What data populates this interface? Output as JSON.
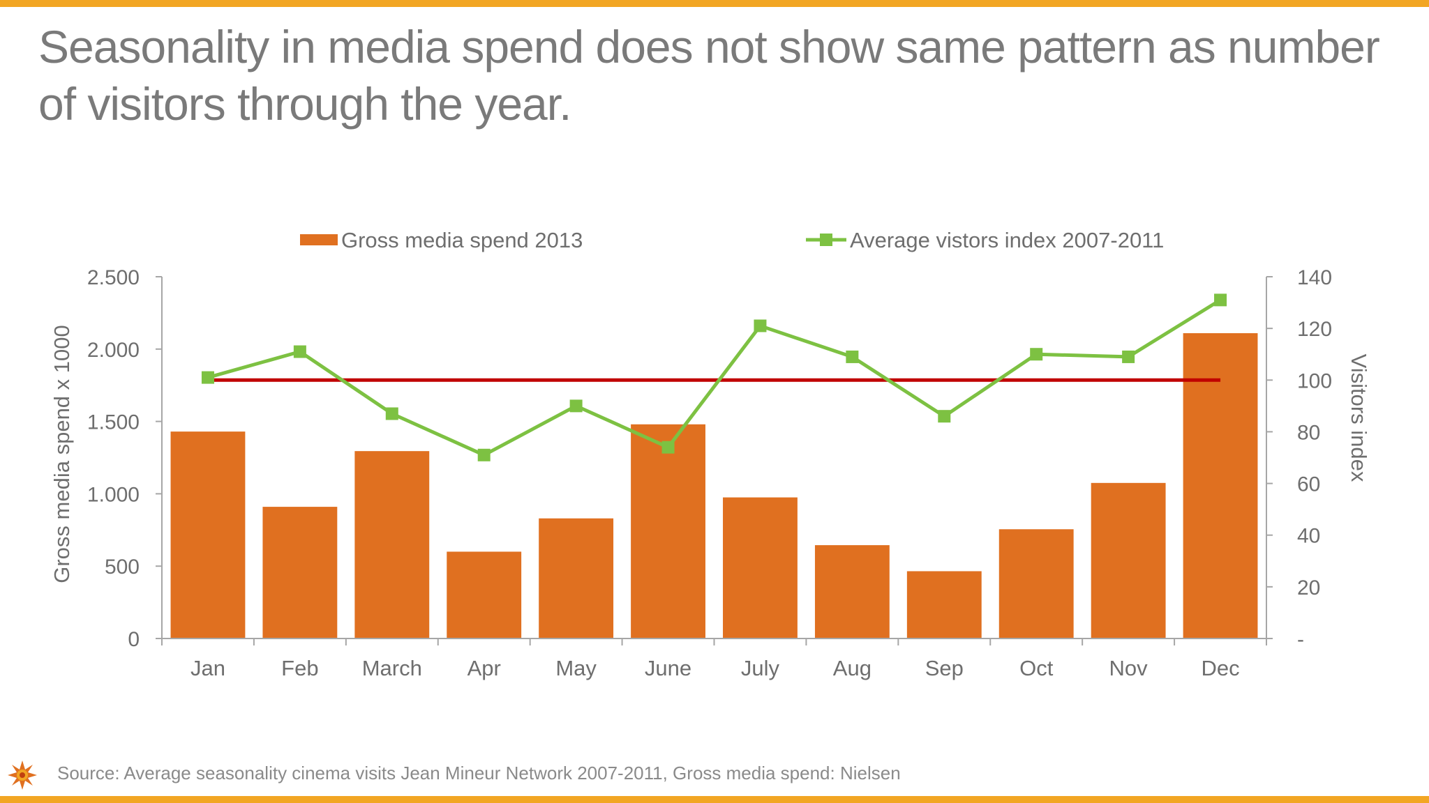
{
  "slide": {
    "title": "Seasonality in media spend does not show same pattern as number of visitors through the year.",
    "source": "Source: Average seasonality cinema visits Jean Mineur Network 2007-2011, Gross media spend: Nielsen",
    "logo_icon": "sun-logo-icon",
    "accent_color": "#f2a623"
  },
  "chart_data": {
    "type": "bar",
    "categories": [
      "Jan",
      "Feb",
      "March",
      "Apr",
      "May",
      "June",
      "July",
      "Aug",
      "Sep",
      "Oct",
      "Nov",
      "Dec"
    ],
    "series": [
      {
        "name": "Gross media spend 2013",
        "type": "bar",
        "axis": "left",
        "color": "#e07020",
        "values": [
          1430,
          910,
          1295,
          600,
          830,
          1480,
          975,
          645,
          465,
          755,
          1075,
          2110
        ]
      },
      {
        "name": "Average vistors index 2007-2011",
        "type": "line",
        "axis": "right",
        "color": "#7dc142",
        "marker": "square",
        "values": [
          101,
          111,
          87,
          71,
          90,
          74,
          121,
          109,
          86,
          110,
          109,
          131
        ]
      }
    ],
    "reference_line": {
      "axis": "right",
      "value": 100,
      "color": "#c00000"
    },
    "ylabel": "Gross media spend x 1000",
    "ylim": [
      0,
      2500
    ],
    "yticks": [
      0,
      500,
      1000,
      1500,
      2000,
      2500
    ],
    "ytick_labels": [
      "0",
      "500",
      "1.000",
      "1.500",
      "2.000",
      "2.500"
    ],
    "y2label": "Visitors index",
    "y2lim": [
      0,
      140
    ],
    "y2ticks": [
      0,
      20,
      40,
      60,
      80,
      100,
      120,
      140
    ],
    "y2tick_labels": [
      "-",
      "20",
      "40",
      "60",
      "80",
      "100",
      "120",
      "140"
    ],
    "legend_position": "top",
    "grid": false
  }
}
